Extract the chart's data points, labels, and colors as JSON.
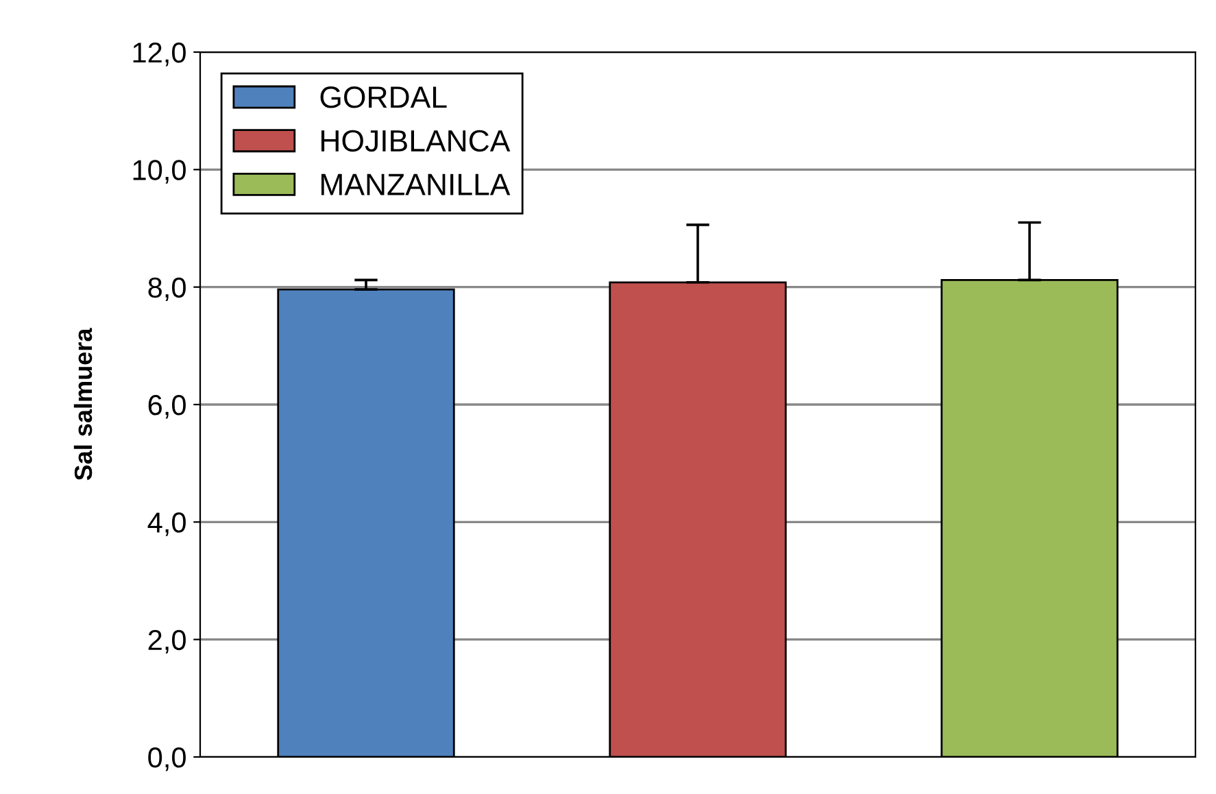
{
  "chart_data": {
    "type": "bar",
    "ylabel": "Sal salmuera",
    "categories": [
      null,
      null,
      null
    ],
    "series": [
      {
        "name": "GORDAL",
        "color": "#4f81bd",
        "values": [
          7.96,
          null,
          null
        ],
        "errors": [
          [
            7.96,
            8.12
          ],
          null,
          null
        ]
      },
      {
        "name": "HOJIBLANCA",
        "color": "#c0504d",
        "values": [
          null,
          8.08,
          null
        ],
        "errors": [
          null,
          [
            8.08,
            9.06
          ],
          null
        ]
      },
      {
        "name": "MANZANILLA",
        "color": "#9bbb59",
        "values": [
          null,
          null,
          8.12
        ],
        "errors": [
          null,
          null,
          [
            8.12,
            9.1
          ]
        ]
      }
    ],
    "ylim": [
      0,
      12
    ],
    "yticks": [
      {
        "value": 0,
        "label": "0,0"
      },
      {
        "value": 2,
        "label": "2,0"
      },
      {
        "value": 4,
        "label": "4,0"
      },
      {
        "value": 6,
        "label": "6,0"
      },
      {
        "value": 8,
        "label": "8,0"
      },
      {
        "value": 10,
        "label": "10,0"
      },
      {
        "value": 12,
        "label": "12,0"
      }
    ],
    "grid": "y",
    "legend": "top left",
    "tick_labels": "y"
  }
}
